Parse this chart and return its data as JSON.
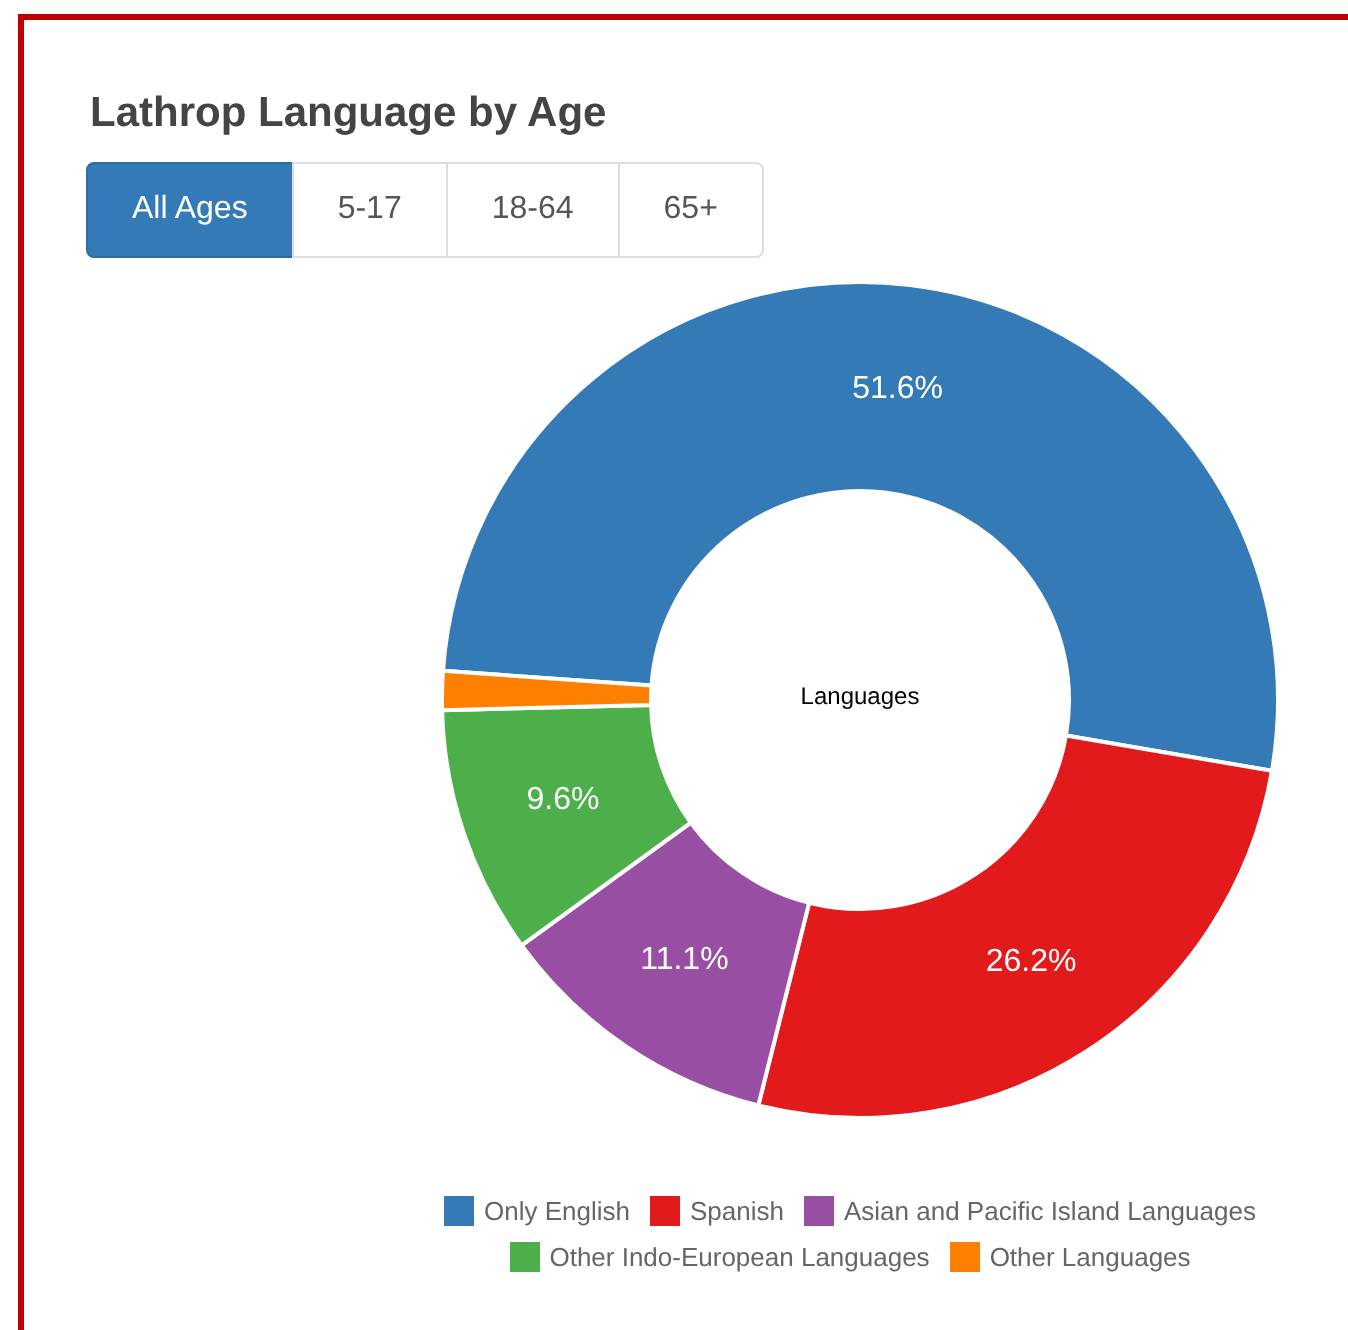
{
  "chart_data": {
    "type": "donut",
    "title": "Lathrop Language by Age",
    "categories": [
      "Only English",
      "Spanish",
      "Asian and Pacific Island Languages",
      "Other Indo-European Languages",
      "Other Languages"
    ],
    "values": [
      51.6,
      26.2,
      11.1,
      9.6,
      1.5
    ],
    "colors": [
      "#337ab7",
      "#e31a1c",
      "#984ea3",
      "#4daf4a",
      "#ff7f00"
    ],
    "value_labels": [
      "51.6%",
      "26.2%",
      "11.1%",
      "9.6%",
      null
    ],
    "annotations": [
      "All Ages",
      "5-17",
      "18-64",
      "65+",
      "Languages"
    ],
    "legend": "bottom"
  }
}
